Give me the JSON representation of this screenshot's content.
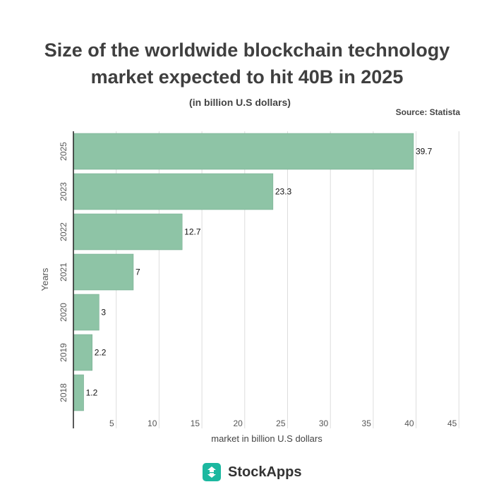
{
  "title_lines": [
    "Size of the worldwide blockchain technology",
    "market expected to hit 40B in 2025"
  ],
  "subtitle": "(in billion U.S dollars)",
  "source": "Source: Statista",
  "brand": {
    "name": "StockApps",
    "logo_icon": "stockapps-logo-icon",
    "logo_color": "#1cb8a0"
  },
  "chart_data": {
    "type": "bar",
    "orientation": "horizontal",
    "categories": [
      "2025",
      "2023",
      "2022",
      "2021",
      "2020",
      "2019",
      "2018"
    ],
    "values": [
      39.7,
      23.3,
      12.7,
      7,
      3,
      2.2,
      1.2
    ],
    "data_labels": [
      "39.7",
      "23.3",
      "12.7",
      "7",
      "3",
      "2.2",
      "1.2"
    ],
    "xlabel": "market in billion U.S dollars",
    "ylabel": "Years",
    "xlim": [
      0,
      45
    ],
    "x_ticks": [
      5,
      10,
      15,
      20,
      25,
      30,
      35,
      40,
      45
    ],
    "grid": true,
    "bar_color": "#8ec4a6"
  }
}
